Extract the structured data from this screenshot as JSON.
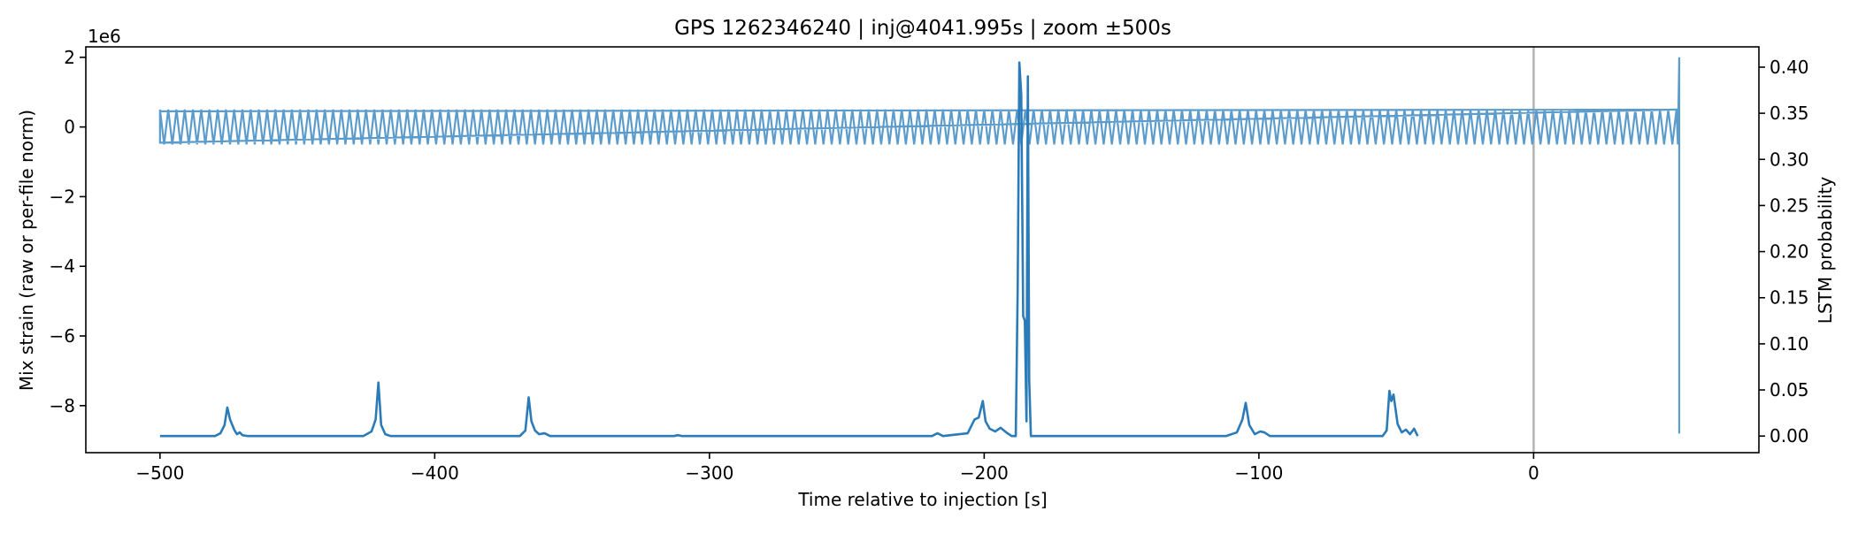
{
  "chart_data": {
    "type": "line",
    "title": "GPS 1262346240 | inj@4041.995s | zoom ±500s",
    "xlabel": "Time relative to injection [s]",
    "ylabel_left": "Mix strain (raw or per-file norm)",
    "ylabel_right": "LSTM probability",
    "left_offset_label": "1e6",
    "xlim": [
      -527,
      82
    ],
    "ylim_left": [
      -9.35,
      2.3
    ],
    "ylim_right": [
      -0.018,
      0.422
    ],
    "grid": false,
    "x_ticks": [
      -500,
      -400,
      -300,
      -200,
      -100,
      0
    ],
    "x_tick_labels": [
      "−500",
      "−400",
      "−300",
      "−200",
      "−100",
      "0"
    ],
    "y_left_ticks": [
      2,
      0,
      -2,
      -4,
      -6,
      -8
    ],
    "y_left_tick_labels": [
      "2",
      "0",
      "−2",
      "−4",
      "−6",
      "−8"
    ],
    "y_right_ticks": [
      0.4,
      0.35,
      0.3,
      0.25,
      0.2,
      0.15,
      0.1,
      0.05,
      0.0
    ],
    "y_right_tick_labels": [
      "0.40",
      "0.35",
      "0.30",
      "0.25",
      "0.20",
      "0.15",
      "0.10",
      "0.05",
      "0.00"
    ],
    "injection_marker_x": 0,
    "series": [
      {
        "axis": "left",
        "color": "#5b9ccc",
        "x_start": -500,
        "x_end": 53,
        "baseline": 0,
        "oscillation_amplitude": 0.5,
        "oscillation_period_s": 3,
        "points": [
          [
            -500,
            0.45
          ],
          [
            -500,
            -0.45
          ],
          [
            52,
            0.5
          ],
          [
            52.5,
            -0.5
          ],
          [
            53,
            2.0
          ],
          [
            53,
            -8.8
          ]
        ]
      },
      {
        "axis": "right",
        "color": "#2a7bb8",
        "points": [
          [
            -500,
            0.0
          ],
          [
            -480,
            0.0
          ],
          [
            -478,
            0.003
          ],
          [
            -476.5,
            0.012
          ],
          [
            -475.5,
            0.031
          ],
          [
            -474.5,
            0.018
          ],
          [
            -473,
            0.007
          ],
          [
            -472,
            0.002
          ],
          [
            -471,
            0.004
          ],
          [
            -470,
            0.001
          ],
          [
            -468,
            0.0
          ],
          [
            -426,
            0.0
          ],
          [
            -423,
            0.005
          ],
          [
            -421.5,
            0.018
          ],
          [
            -420.5,
            0.058
          ],
          [
            -419.5,
            0.012
          ],
          [
            -418,
            0.002
          ],
          [
            -416,
            0.0
          ],
          [
            -369,
            0.0
          ],
          [
            -367,
            0.006
          ],
          [
            -365.8,
            0.042
          ],
          [
            -364.8,
            0.016
          ],
          [
            -363.5,
            0.006
          ],
          [
            -362,
            0.002
          ],
          [
            -360,
            0.003
          ],
          [
            -358,
            0.0
          ],
          [
            -313,
            0.0
          ],
          [
            -311.5,
            0.001
          ],
          [
            -310,
            0.0
          ],
          [
            -219,
            0.0
          ],
          [
            -217,
            0.003
          ],
          [
            -215,
            0.0
          ],
          [
            -206,
            0.003
          ],
          [
            -203.5,
            0.018
          ],
          [
            -202,
            0.02
          ],
          [
            -200.5,
            0.038
          ],
          [
            -199.5,
            0.016
          ],
          [
            -198,
            0.008
          ],
          [
            -196,
            0.005
          ],
          [
            -194,
            0.009
          ],
          [
            -192,
            0.004
          ],
          [
            -190,
            0.0
          ],
          [
            -188.5,
            0.0
          ],
          [
            -187.8,
            0.16
          ],
          [
            -187.2,
            0.405
          ],
          [
            -186.5,
            0.37
          ],
          [
            -185.8,
            0.13
          ],
          [
            -185.2,
            0.125
          ],
          [
            -184.6,
            0.016
          ],
          [
            -184.1,
            0.39
          ],
          [
            -183.6,
            0.06
          ],
          [
            -183,
            0.0
          ],
          [
            -112,
            0.0
          ],
          [
            -108,
            0.004
          ],
          [
            -106,
            0.018
          ],
          [
            -104.8,
            0.036
          ],
          [
            -103.5,
            0.012
          ],
          [
            -101.5,
            0.002
          ],
          [
            -99.5,
            0.005
          ],
          [
            -98,
            0.004
          ],
          [
            -96,
            0.0
          ],
          [
            -55,
            0.0
          ],
          [
            -53.5,
            0.006
          ],
          [
            -52.5,
            0.049
          ],
          [
            -51.8,
            0.038
          ],
          [
            -51,
            0.045
          ],
          [
            -49.5,
            0.013
          ],
          [
            -48,
            0.004
          ],
          [
            -46.5,
            0.007
          ],
          [
            -45,
            0.002
          ],
          [
            -43.5,
            0.008
          ],
          [
            -42.2,
            0.0
          ]
        ]
      }
    ]
  }
}
